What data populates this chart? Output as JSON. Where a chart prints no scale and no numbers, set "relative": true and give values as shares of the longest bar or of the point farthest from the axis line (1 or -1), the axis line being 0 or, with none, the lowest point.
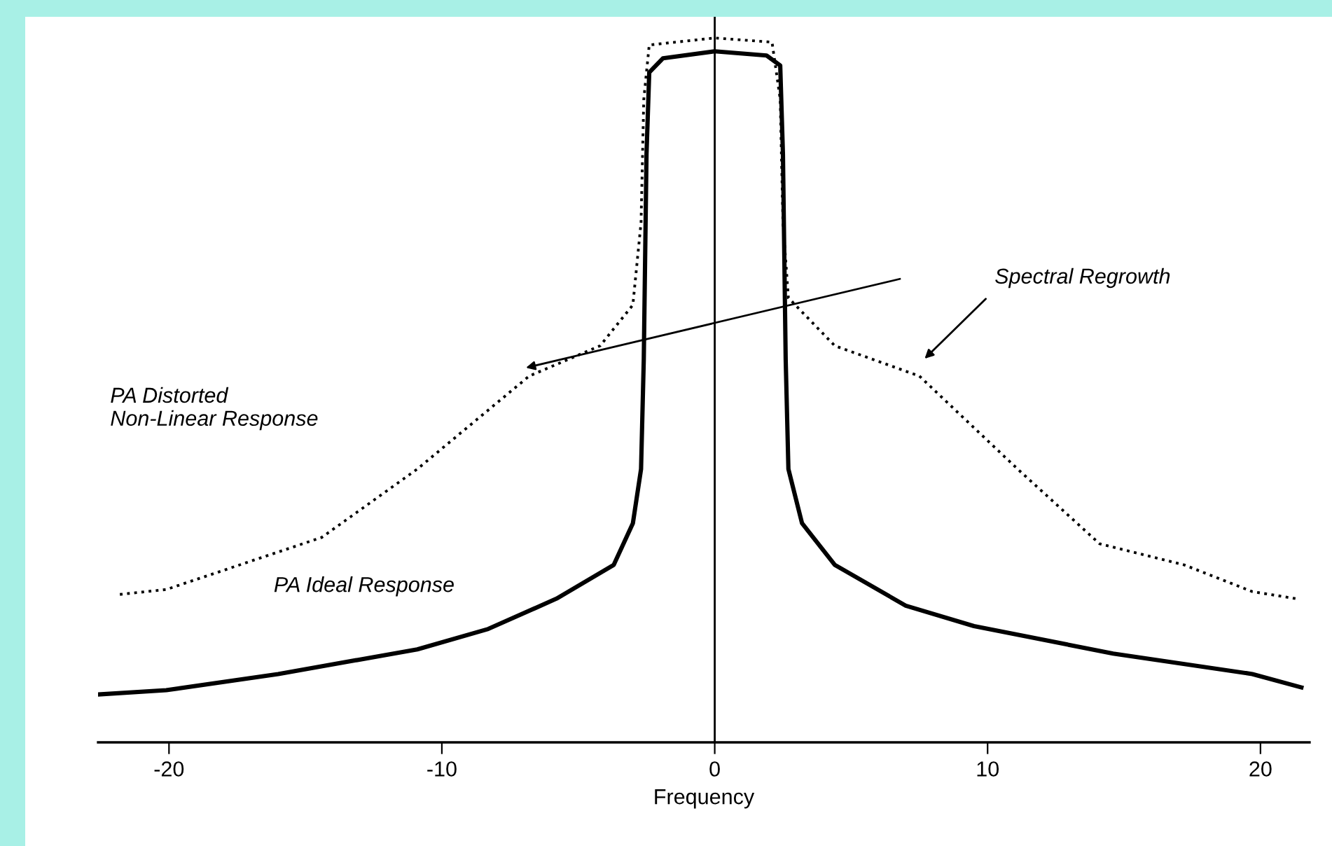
{
  "chart_data": {
    "type": "line",
    "relative": true,
    "xlabel": "Frequency",
    "xlim": [
      -22.6,
      21.8
    ],
    "xticks": [
      -20,
      -10,
      0,
      10,
      20
    ],
    "grid": false,
    "ref_lines": [
      {
        "axis": "x",
        "value": 0,
        "color": "#000000"
      }
    ],
    "legend": false,
    "annotations": [
      "Spectral Regrowth",
      "PA Distorted\nNon-Linear Response",
      "PA Ideal Response"
    ],
    "series": [
      {
        "color": "#000000",
        "line_style": "solid",
        "x": [
          -22.6,
          -20.1,
          -16.0,
          -10.9,
          -8.3,
          -5.8,
          -3.7,
          -3.0,
          -2.7,
          -2.6,
          -2.5,
          -2.4,
          -1.9,
          0,
          1.9,
          2.4,
          2.5,
          2.6,
          2.7,
          3.2,
          4.4,
          7.0,
          9.5,
          14.6,
          19.7,
          21.5
        ],
        "values": [
          0.068,
          0.074,
          0.097,
          0.132,
          0.161,
          0.204,
          0.252,
          0.311,
          0.388,
          0.544,
          0.835,
          0.951,
          0.971,
          0.981,
          0.975,
          0.961,
          0.835,
          0.544,
          0.388,
          0.311,
          0.252,
          0.194,
          0.165,
          0.126,
          0.097,
          0.078
        ]
      },
      {
        "color": "#000000",
        "line_style": "dotted",
        "x": [
          -21.8,
          -20.1,
          -14.4,
          -10.9,
          -6.8,
          -4.2,
          -3.0,
          -2.7,
          -2.6,
          -2.4,
          0,
          2.1,
          2.4,
          2.5,
          2.7,
          4.4,
          7.5,
          11.1,
          14.1,
          17.2,
          19.7,
          21.3
        ],
        "values": [
          0.21,
          0.217,
          0.291,
          0.388,
          0.52,
          0.563,
          0.621,
          0.738,
          0.913,
          0.99,
          1,
          0.994,
          0.913,
          0.738,
          0.631,
          0.563,
          0.52,
          0.388,
          0.282,
          0.252,
          0.214,
          0.204
        ]
      }
    ]
  }
}
